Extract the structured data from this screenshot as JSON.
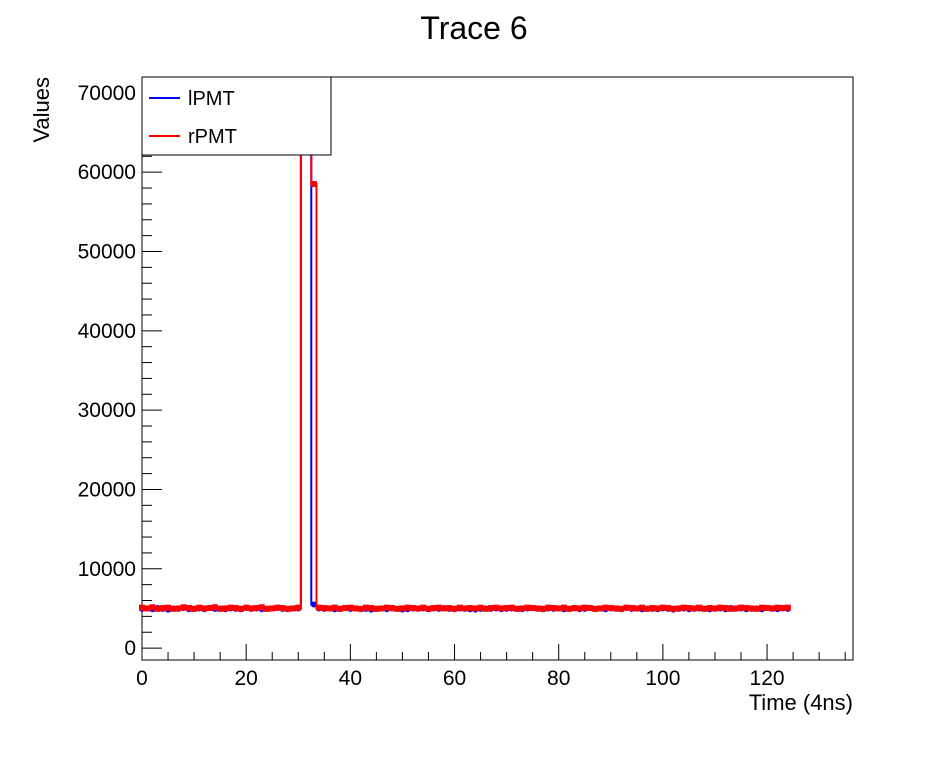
{
  "chart_data": {
    "type": "line",
    "title": "Trace 6",
    "xlabel": "Time (4ns)",
    "ylabel": "Values",
    "xlim": [
      0,
      136.5
    ],
    "ylim": [
      -1500,
      72000
    ],
    "xticks": [
      0,
      20,
      40,
      60,
      80,
      100,
      120
    ],
    "yticks": [
      0,
      10000,
      20000,
      30000,
      40000,
      50000,
      60000,
      70000
    ],
    "grid": false,
    "legend_position": "top-left",
    "series": [
      {
        "name": "lPMT",
        "color": "#0000ff",
        "x": [
          0,
          1,
          2,
          3,
          4,
          5,
          6,
          7,
          8,
          9,
          10,
          11,
          12,
          13,
          14,
          15,
          16,
          17,
          18,
          19,
          20,
          21,
          22,
          23,
          24,
          25,
          26,
          27,
          28,
          29,
          30,
          31,
          32,
          33,
          34,
          35,
          36,
          37,
          38,
          39,
          40,
          41,
          42,
          43,
          44,
          45,
          46,
          47,
          48,
          49,
          50,
          51,
          52,
          53,
          54,
          55,
          56,
          57,
          58,
          59,
          60,
          61,
          62,
          63,
          64,
          65,
          66,
          67,
          68,
          69,
          70,
          71,
          72,
          73,
          74,
          75,
          76,
          77,
          78,
          79,
          80,
          81,
          82,
          83,
          84,
          85,
          86,
          87,
          88,
          89,
          90,
          91,
          92,
          93,
          94,
          95,
          96,
          97,
          98,
          99,
          100,
          101,
          102,
          103,
          104,
          105,
          106,
          107,
          108,
          109,
          110,
          111,
          112,
          113,
          114,
          115,
          116,
          117,
          118,
          119,
          120,
          121,
          122,
          123,
          124
        ],
        "y": [
          4950,
          5000,
          4900,
          5050,
          4950,
          4850,
          5000,
          4950,
          5050,
          4900,
          4950,
          5000,
          4900,
          5050,
          4950,
          5000,
          4900,
          5000,
          4950,
          4900,
          5050,
          4950,
          5000,
          4900,
          4950,
          5000,
          5050,
          4950,
          4900,
          5000,
          5000,
          63000,
          64000,
          5500,
          5000,
          4950,
          5000,
          4900,
          4950,
          5050,
          4950,
          5000,
          4900,
          4950,
          4850,
          4950,
          5000,
          4900,
          5000,
          4950,
          4850,
          4900,
          5000,
          4950,
          5000,
          4900,
          5000,
          4950,
          5050,
          4950,
          4900,
          5000,
          4950,
          4900,
          4850,
          4950,
          5000,
          4950,
          5000,
          4900,
          4950,
          5000,
          4950,
          4900,
          5000,
          5050,
          4950,
          4900,
          5000,
          4950,
          5000,
          4900,
          4950,
          5000,
          4900,
          4950,
          5050,
          4950,
          5000,
          4900,
          5000,
          4950,
          4900,
          5050,
          4950,
          5000,
          4900,
          4950,
          4950,
          4900,
          5000,
          4950,
          4850,
          4950,
          5000,
          4900,
          4950,
          5000,
          4950,
          4900,
          4950,
          5000,
          4900,
          5050,
          4950,
          5000,
          4900,
          4950,
          5000,
          4900,
          5050,
          4950,
          4900,
          5000,
          4950
        ]
      },
      {
        "name": "rPMT",
        "color": "#ff0000",
        "x": [
          0,
          1,
          2,
          3,
          4,
          5,
          6,
          7,
          8,
          9,
          10,
          11,
          12,
          13,
          14,
          15,
          16,
          17,
          18,
          19,
          20,
          21,
          22,
          23,
          24,
          25,
          26,
          27,
          28,
          29,
          30,
          31,
          32,
          33,
          34,
          35,
          36,
          37,
          38,
          39,
          40,
          41,
          42,
          43,
          44,
          45,
          46,
          47,
          48,
          49,
          50,
          51,
          52,
          53,
          54,
          55,
          56,
          57,
          58,
          59,
          60,
          61,
          62,
          63,
          64,
          65,
          66,
          67,
          68,
          69,
          70,
          71,
          72,
          73,
          74,
          75,
          76,
          77,
          78,
          79,
          80,
          81,
          82,
          83,
          84,
          85,
          86,
          87,
          88,
          89,
          90,
          91,
          92,
          93,
          94,
          95,
          96,
          97,
          98,
          99,
          100,
          101,
          102,
          103,
          104,
          105,
          106,
          107,
          108,
          109,
          110,
          111,
          112,
          113,
          114,
          115,
          116,
          117,
          118,
          119,
          120,
          121,
          122,
          123,
          124
        ],
        "y": [
          5100,
          5000,
          5150,
          4950,
          5050,
          5100,
          4950,
          5000,
          5150,
          5050,
          4950,
          5100,
          5000,
          5050,
          5150,
          4950,
          5000,
          5100,
          5050,
          4950,
          5100,
          5000,
          5050,
          5150,
          4950,
          5000,
          5100,
          5050,
          4950,
          5000,
          5100,
          63500,
          63000,
          58500,
          5100,
          5050,
          5000,
          5100,
          4950,
          5050,
          5100,
          5000,
          4950,
          5100,
          5050,
          4950,
          5000,
          5100,
          5050,
          4950,
          5000,
          5100,
          5050,
          5000,
          5100,
          4950,
          5050,
          5100,
          5000,
          5050,
          4950,
          5100,
          5000,
          5050,
          5000,
          5100,
          4950,
          5050,
          5100,
          5000,
          5050,
          5100,
          4950,
          5000,
          5100,
          5050,
          5000,
          4950,
          5100,
          5050,
          5000,
          5100,
          4950,
          5050,
          5000,
          5100,
          5050,
          4950,
          5000,
          5100,
          5050,
          5000,
          4950,
          5100,
          5050,
          5000,
          5100,
          4950,
          5050,
          5000,
          5100,
          5050,
          4950,
          5000,
          5100,
          5050,
          5000,
          5100,
          4950,
          5050,
          5000,
          5100,
          5050,
          4950,
          5000,
          5100,
          5050,
          5000,
          4950,
          5100,
          5050,
          5000,
          5100,
          5050,
          5100
        ]
      }
    ]
  }
}
